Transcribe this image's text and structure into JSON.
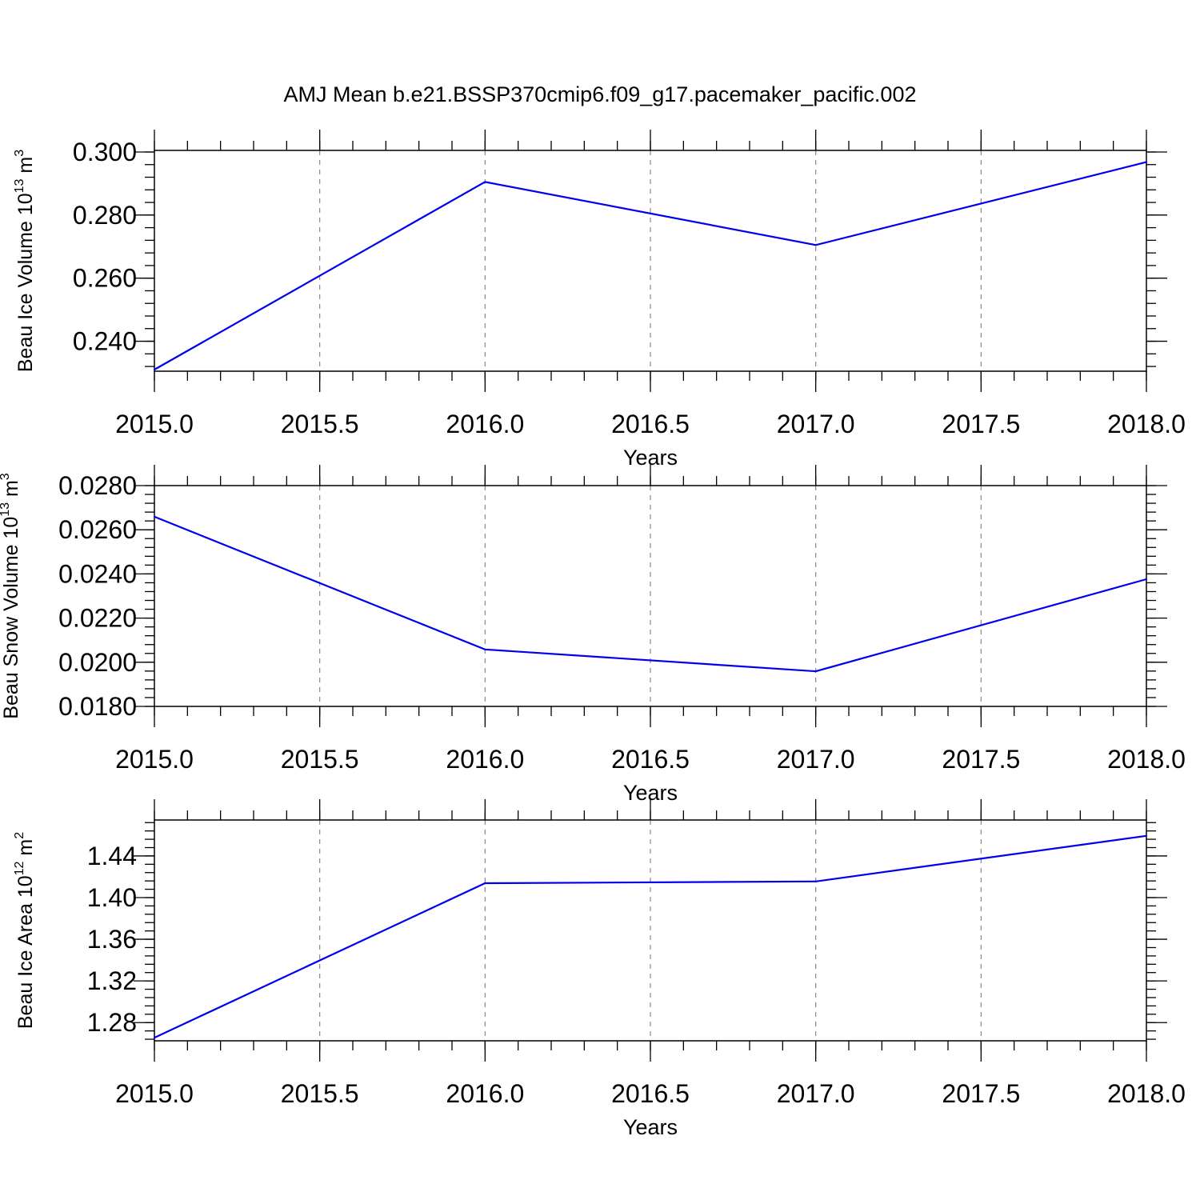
{
  "figure": {
    "title": "AMJ Mean b.e21.BSSP370cmip6.f09_g17.pacemaker_pacific.002"
  },
  "chart_data": [
    {
      "type": "line",
      "xlabel": "Years",
      "ylabel": {
        "base": "Beau Ice Volume 10",
        "exp": "13",
        "unit": " m",
        "unit_exp": "3"
      },
      "x": [
        2015,
        2016,
        2017,
        2018
      ],
      "series": [
        {
          "values": [
            0.231,
            0.2905,
            0.2705,
            0.2968
          ]
        }
      ],
      "xlim": [
        2015,
        2018
      ],
      "ylim": [
        0.2305,
        0.3005
      ],
      "xticks": [
        2015.0,
        2015.5,
        2016.0,
        2016.5,
        2017.0,
        2017.5,
        2018.0
      ],
      "xticklabels": [
        "2015.0",
        "2015.5",
        "2016.0",
        "2016.5",
        "2017.0",
        "2017.5",
        "2018.0"
      ],
      "yticks": [
        0.24,
        0.26,
        0.28,
        0.3
      ],
      "yticklabels": [
        "0.240",
        "0.260",
        "0.280",
        "0.300"
      ],
      "y_minor_step": 0.004,
      "grid": "x dashed",
      "color": "#0000ee"
    },
    {
      "type": "line",
      "xlabel": "Years",
      "ylabel": {
        "base": "Beau Snow Volume 10",
        "exp": "13",
        "unit": " m",
        "unit_exp": "3"
      },
      "x": [
        2015,
        2016,
        2017,
        2018
      ],
      "series": [
        {
          "values": [
            0.02659,
            0.02058,
            0.01959,
            0.02376
          ]
        }
      ],
      "xlim": [
        2015,
        2018
      ],
      "ylim": [
        0.018,
        0.028
      ],
      "xticks": [
        2015.0,
        2015.5,
        2016.0,
        2016.5,
        2017.0,
        2017.5,
        2018.0
      ],
      "xticklabels": [
        "2015.0",
        "2015.5",
        "2016.0",
        "2016.5",
        "2017.0",
        "2017.5",
        "2018.0"
      ],
      "yticks": [
        0.018,
        0.02,
        0.022,
        0.024,
        0.026,
        0.028
      ],
      "yticklabels": [
        "0.0180",
        "0.0200",
        "0.0220",
        "0.0240",
        "0.0260",
        "0.0280"
      ],
      "y_minor_step": 0.0004,
      "grid": "x dashed",
      "color": "#0000ee"
    },
    {
      "type": "line",
      "xlabel": "Years",
      "ylabel": {
        "base": "Beau Ice Area 10",
        "exp": "12",
        "unit": " m",
        "unit_exp": "2"
      },
      "x": [
        2015,
        2016,
        2017,
        2018
      ],
      "series": [
        {
          "values": [
            1.2655,
            1.4138,
            1.4155,
            1.4593
          ]
        }
      ],
      "xlim": [
        2015,
        2018
      ],
      "ylim": [
        1.2625,
        1.4745
      ],
      "xticks": [
        2015.0,
        2015.5,
        2016.0,
        2016.5,
        2017.0,
        2017.5,
        2018.0
      ],
      "xticklabels": [
        "2015.0",
        "2015.5",
        "2016.0",
        "2016.5",
        "2017.0",
        "2017.5",
        "2018.0"
      ],
      "yticks": [
        1.28,
        1.32,
        1.36,
        1.4,
        1.44
      ],
      "yticklabels": [
        "1.28",
        "1.32",
        "1.36",
        "1.40",
        "1.44"
      ],
      "y_minor_step": 0.008,
      "grid": "x dashed",
      "color": "#0000ee"
    }
  ]
}
